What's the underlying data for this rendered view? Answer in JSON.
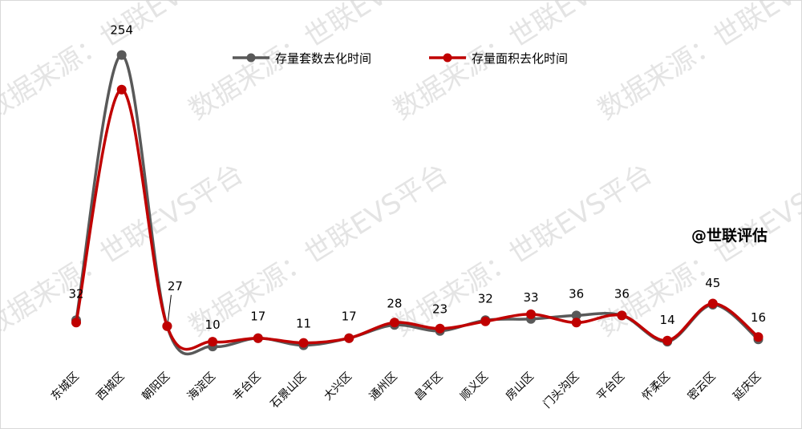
{
  "chart_data": {
    "type": "line",
    "categories": [
      "东城区",
      "西城区",
      "朝阳区",
      "海淀区",
      "丰台区",
      "石景山区",
      "大兴区",
      "通州区",
      "昌平区",
      "顺义区",
      "房山区",
      "门头沟区",
      "平台区",
      "怀柔区",
      "密云区",
      "延庆区"
    ],
    "series": [
      {
        "name": "存量套数去化时间",
        "color": "#595959",
        "values": [
          32,
          254,
          27,
          10,
          17,
          11,
          17,
          28,
          23,
          32,
          33,
          36,
          36,
          14,
          45,
          16
        ]
      },
      {
        "name": "存量面积去化时间",
        "color": "#c00000",
        "values": [
          30,
          225,
          27,
          14,
          17,
          13,
          17,
          30,
          25,
          31,
          37,
          30,
          36,
          15,
          46,
          18
        ]
      }
    ],
    "data_labels": [
      "32",
      "254",
      "27",
      "10",
      "17",
      "11",
      "17",
      "28",
      "23",
      "32",
      "33",
      "36",
      "36",
      "14",
      "45",
      "16"
    ],
    "ylim": [
      0,
      290
    ],
    "legend_position": "top",
    "grid": false,
    "smooth": true
  },
  "brand": "@世联评估",
  "watermarks": [
    "数据来源：世联EVS平台"
  ]
}
